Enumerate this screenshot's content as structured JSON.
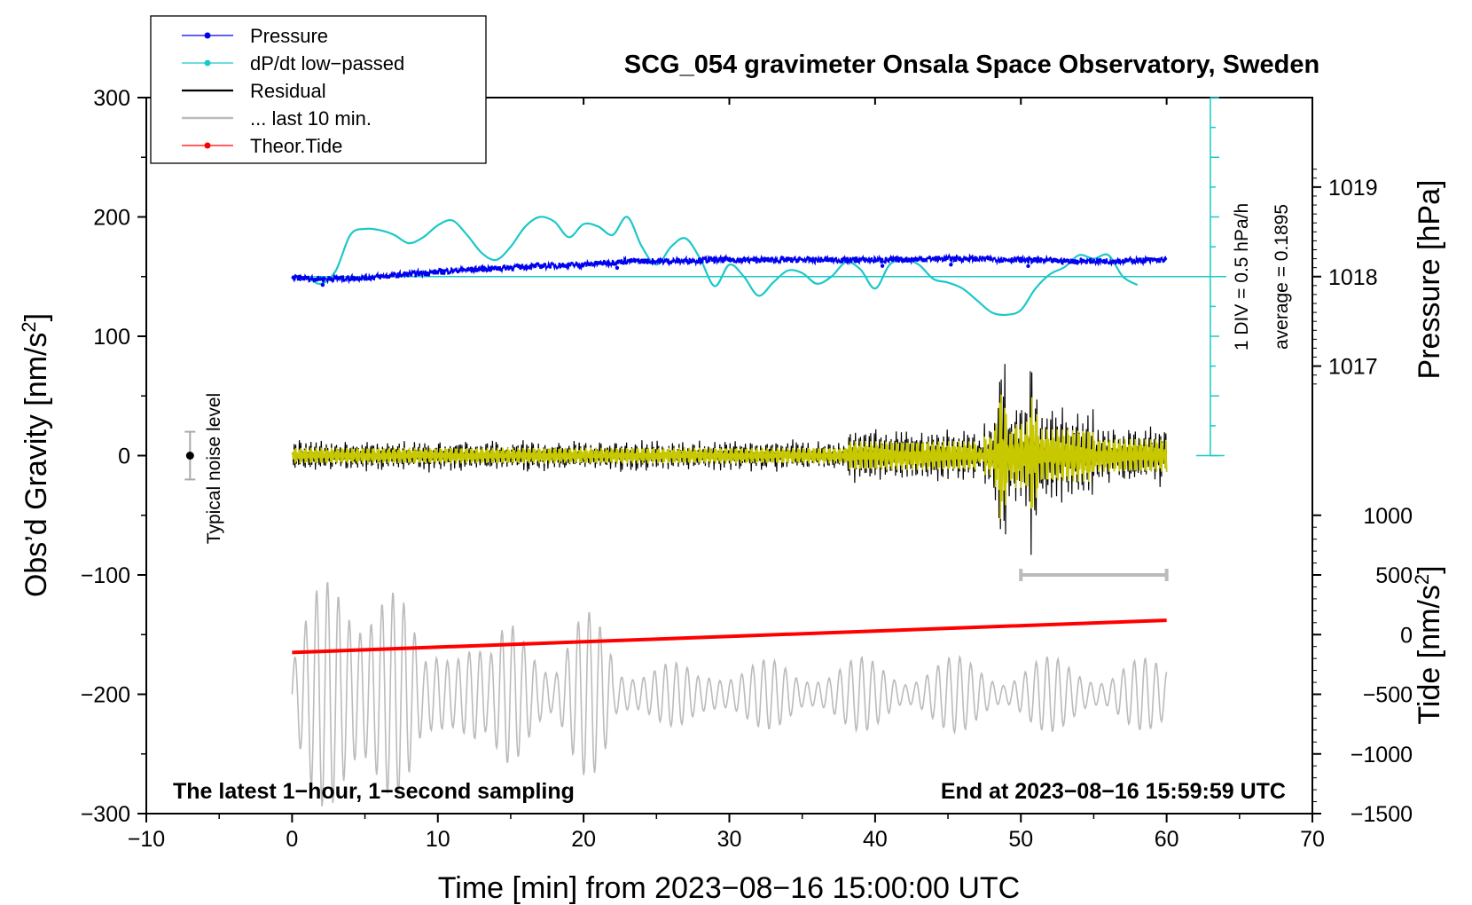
{
  "chart_data": {
    "type": "line",
    "title": "SCG_054 gravimeter Onsala Space Observatory, Sweden",
    "xlabel": "Time [min] from 2023−08−16 15:00:00 UTC",
    "ylabel_left": "Obs’d Gravity [nm/s²]",
    "ylabel_right_pressure": "Pressure [hPa]",
    "ylabel_right_tide": "Tide [nm/s²]",
    "xlim": [
      -10,
      70
    ],
    "ylim_left": [
      -300,
      300
    ],
    "x_ticks": [
      -10,
      0,
      10,
      20,
      30,
      40,
      50,
      60,
      70
    ],
    "x_tick_labels": [
      "−10",
      "0",
      "10",
      "20",
      "30",
      "40",
      "50",
      "60",
      "70"
    ],
    "y_ticks_left": [
      300,
      200,
      100,
      0,
      -100,
      -200,
      -300
    ],
    "y_tick_labels_left": [
      "300",
      "200",
      "100",
      "0",
      "−100",
      "−200",
      "−300"
    ],
    "pressure_axis": {
      "ticks": [
        1019,
        1018,
        1017
      ],
      "tick_labels": [
        "1019",
        "1018",
        "1017"
      ],
      "grav_at_1018": 150,
      "grav_per_hPa": 75
    },
    "tide_axis": {
      "ticks": [
        1000,
        500,
        0,
        -500,
        -1000,
        -1500
      ],
      "tick_labels": [
        "1000",
        "500",
        "0",
        "−500",
        "−1000",
        "−1500"
      ],
      "grav_at_0": -150,
      "grav_per_unit": 0.1
    },
    "dpdt_scale": {
      "label_div": "1 DIV = 0.5 hPa/h",
      "label_avg": "average = 0.1895",
      "x": 63,
      "y_range": [
        0,
        300
      ],
      "baseline": 150
    },
    "noise_bar": {
      "label": "Typical noise level",
      "x": -7,
      "center": 0,
      "half_range": 20
    },
    "last10_marker": {
      "x_range": [
        50,
        60
      ],
      "y": -100
    },
    "bottom_left_text": "The latest 1−hour, 1−second sampling",
    "bottom_right_text": "End at 2023−08−16 15:59:59 UTC",
    "legend": [
      {
        "label": "Pressure",
        "color": "#0000ee",
        "marker": true
      },
      {
        "label": "dP/dt low−passed",
        "color": "#1cc8c8",
        "marker": true
      },
      {
        "label": "Residual",
        "color": "#000000",
        "marker": false
      },
      {
        "label": "... last 10 min.",
        "color": "#bbbbbb",
        "marker": false
      },
      {
        "label": "Theor.Tide",
        "color": "#ff0000",
        "marker": true
      }
    ],
    "series": [
      {
        "name": "Pressure",
        "color": "#0000ee",
        "units": "gravity-axis (150 = 1018 hPa)",
        "x": [
          0,
          2,
          5,
          8,
          11,
          14,
          17,
          20,
          23,
          26,
          29,
          32,
          35,
          38,
          41,
          44,
          47,
          50,
          53,
          56,
          60
        ],
        "y": [
          149,
          148,
          149,
          152,
          155,
          157,
          159,
          160,
          163,
          163,
          164,
          164,
          164,
          164,
          164,
          165,
          165,
          164,
          163,
          163,
          164
        ]
      },
      {
        "name": "dP/dt low-passed",
        "color": "#1cc8c8",
        "units": "gravity-axis (150 = 0.1895 hPa/h average)",
        "x": [
          0,
          1,
          2,
          3,
          4,
          5,
          6,
          7,
          8,
          9,
          10,
          11,
          12,
          13,
          14,
          15,
          16,
          17,
          18,
          19,
          20,
          21,
          22,
          23,
          24,
          25,
          26,
          27,
          28,
          29,
          30,
          31,
          32,
          33,
          34,
          35,
          36,
          37,
          38,
          39,
          40,
          41,
          42,
          43,
          44,
          45,
          46,
          47,
          48,
          49,
          50,
          51,
          52,
          53,
          54,
          55,
          56,
          57,
          58
        ],
        "y": [
          150,
          149,
          144,
          155,
          185,
          190,
          189,
          185,
          178,
          183,
          193,
          197,
          185,
          170,
          164,
          175,
          192,
          200,
          196,
          183,
          194,
          192,
          185,
          200,
          175,
          160,
          175,
          182,
          165,
          142,
          160,
          150,
          134,
          145,
          155,
          153,
          144,
          150,
          162,
          156,
          140,
          160,
          164,
          160,
          148,
          145,
          140,
          130,
          120,
          118,
          122,
          140,
          152,
          158,
          168,
          165,
          168,
          150,
          143
        ]
      },
      {
        "name": "Residual",
        "color": "#000000",
        "units": "nm/s²",
        "x": [
          0,
          60
        ],
        "y": [
          0,
          0
        ]
      },
      {
        "name": "... last 10 min.",
        "color": "#bbbbbb",
        "units": "nm/s² (offset −200)",
        "x": [
          0,
          60
        ],
        "y": [
          -200,
          -200
        ]
      },
      {
        "name": "Theor.Tide",
        "color": "#ff0000",
        "units": "nm/s² (tide axis)",
        "x": [
          0,
          60
        ],
        "y": [
          -150,
          120
        ]
      }
    ]
  }
}
